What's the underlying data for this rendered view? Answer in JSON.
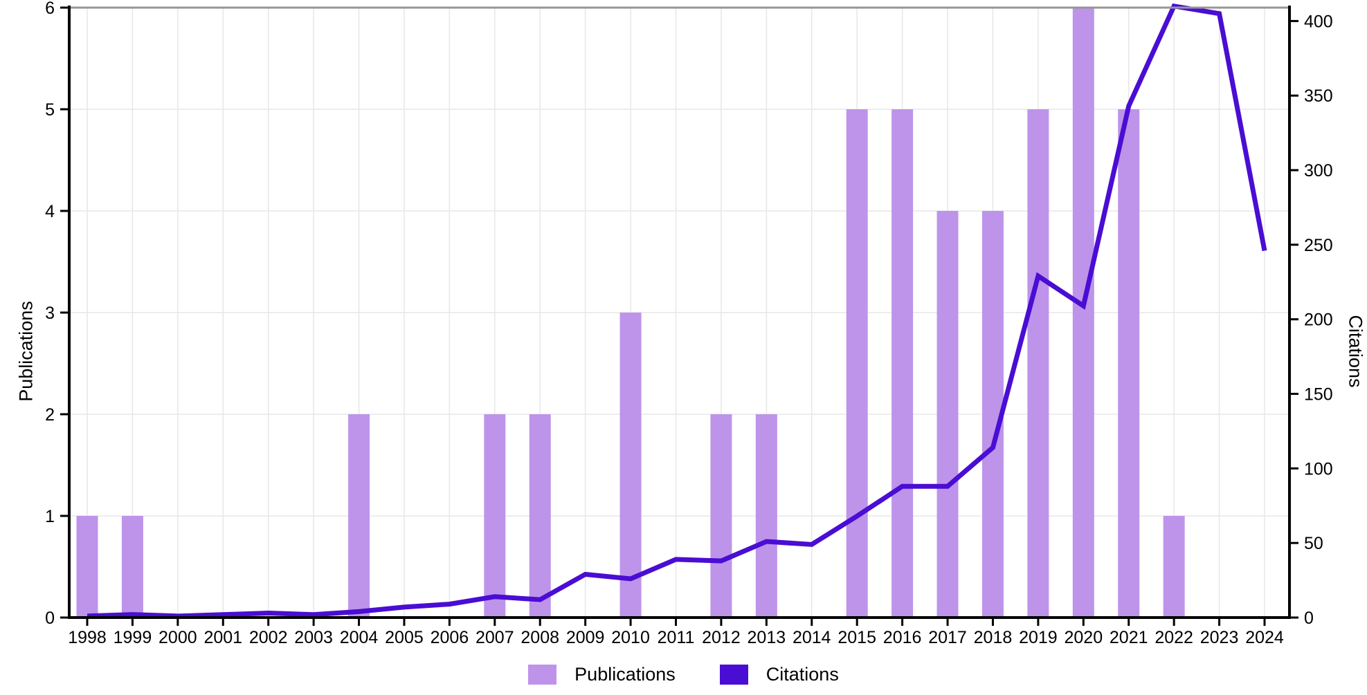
{
  "chart_data": {
    "type": "bar+line",
    "categories": [
      "1998",
      "1999",
      "2000",
      "2001",
      "2002",
      "2003",
      "2004",
      "2005",
      "2006",
      "2007",
      "2008",
      "2009",
      "2010",
      "2011",
      "2012",
      "2013",
      "2014",
      "2015",
      "2016",
      "2017",
      "2018",
      "2019",
      "2020",
      "2021",
      "2022",
      "2023",
      "2024"
    ],
    "series": [
      {
        "name": "Publications",
        "type": "bar",
        "axis": "left",
        "color": "#bd94ea",
        "values": [
          1,
          1,
          0,
          0,
          0,
          0,
          2,
          0,
          0,
          2,
          2,
          0,
          3,
          0,
          2,
          2,
          0,
          5,
          5,
          4,
          4,
          5,
          6,
          5,
          1,
          0,
          0
        ]
      },
      {
        "name": "Citations",
        "type": "line",
        "axis": "right",
        "color": "#4a0dd3",
        "values": [
          1,
          2,
          1,
          2,
          3,
          2,
          4,
          7,
          9,
          14,
          12,
          29,
          26,
          39,
          38,
          51,
          49,
          68,
          88,
          88,
          114,
          229,
          209,
          343,
          410,
          405,
          246
        ]
      }
    ],
    "left_axis": {
      "label": "Publications",
      "ticks": [
        0,
        1,
        2,
        3,
        4,
        5,
        6
      ],
      "range": [
        0,
        6
      ]
    },
    "right_axis": {
      "label": "Citations",
      "ticks": [
        0,
        50,
        100,
        150,
        200,
        250,
        300,
        350,
        400
      ],
      "range": [
        0,
        409
      ]
    },
    "grid": true,
    "legend_position": "bottom"
  }
}
